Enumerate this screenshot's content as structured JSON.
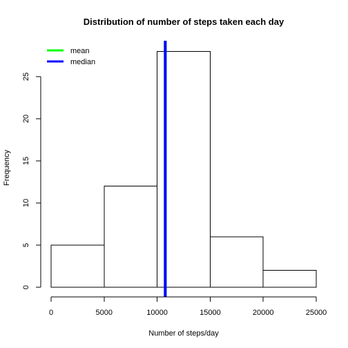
{
  "chart_data": {
    "type": "bar",
    "subtype": "histogram",
    "title": "Distribution of number of steps taken each day",
    "xlabel": "Number of steps/day",
    "ylabel": "Frequency",
    "bins": [
      {
        "start": 0,
        "end": 5000,
        "count": 5
      },
      {
        "start": 5000,
        "end": 10000,
        "count": 12
      },
      {
        "start": 10000,
        "end": 15000,
        "count": 28
      },
      {
        "start": 15000,
        "end": 20000,
        "count": 6
      },
      {
        "start": 20000,
        "end": 25000,
        "count": 2
      }
    ],
    "x_ticks": [
      0,
      5000,
      10000,
      15000,
      20000,
      25000
    ],
    "y_ticks": [
      0,
      5,
      10,
      15,
      20,
      25
    ],
    "xlim": [
      0,
      25000
    ],
    "ylim": [
      0,
      28
    ],
    "reference_lines": [
      {
        "name": "mean",
        "value": 10766,
        "color": "#00ff00"
      },
      {
        "name": "median",
        "value": 10765,
        "color": "#0000ff"
      }
    ],
    "legend": {
      "position": "top-left",
      "items": [
        {
          "label": "mean",
          "color": "#00ff00"
        },
        {
          "label": "median",
          "color": "#0000ff"
        }
      ]
    },
    "grid": false,
    "bar_fill": "#ffffff",
    "bar_stroke": "#000000"
  }
}
